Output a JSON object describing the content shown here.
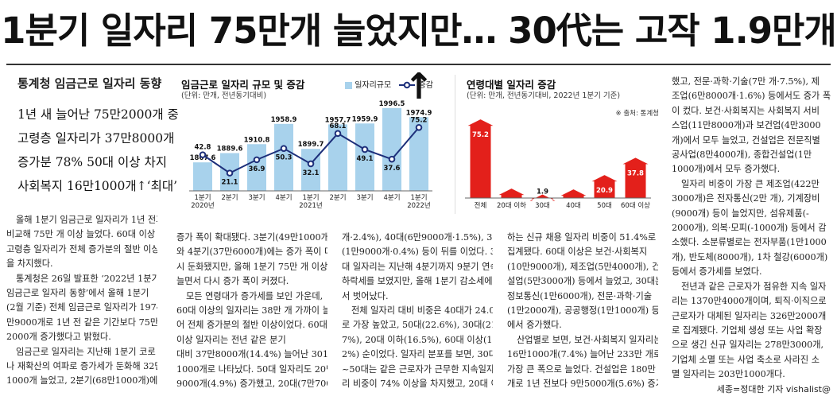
{
  "headline": "1분기 일자리 75만개 늘었지만… 30代는 고작 1.9만개↑",
  "sidebar": {
    "kicker": "통계청 임금근로 일자리 동향",
    "summary_lines": [
      "1년 새 늘어난 75만2000개 중",
      "고령층 일자리가 37만8000개",
      "증가분 78% 50대 이상 차지",
      "사회복지 16만1000개↑‘최대’"
    ]
  },
  "chart_data": [
    {
      "type": "bar",
      "title": "임금근로 일자리 규모 및 증감",
      "subtitle": "(단위: 만개, 전년동기대비)",
      "legend": [
        "일자리규모",
        "증감"
      ],
      "categories": [
        [
          "1분기",
          "2020년"
        ],
        [
          "2분기"
        ],
        [
          "3분기"
        ],
        [
          "4분기"
        ],
        [
          "1분기",
          "2021년"
        ],
        [
          "2분기"
        ],
        [
          "3분기"
        ],
        [
          "4분기"
        ],
        [
          "1분기",
          "2022년"
        ]
      ],
      "series": [
        {
          "name": "일자리규모",
          "type": "bar",
          "color": "#a8d2ec",
          "values": [
            1867.6,
            1889.6,
            1910.8,
            1958.9,
            1899.7,
            1957.7,
            1959.9,
            1996.5,
            1974.9
          ],
          "labels": [
            "1867.6",
            "1889.6",
            "1910.8",
            "1958.9",
            "1899.7",
            "1957.7",
            "1959.9",
            "1996.5",
            "1974.9"
          ]
        },
        {
          "name": "증감",
          "type": "line",
          "color": "#1d2f7a",
          "values": [
            42.8,
            21.1,
            36.9,
            50.3,
            32.1,
            68.1,
            49.1,
            37.6,
            75.2
          ],
          "labels": [
            "42.8",
            "21.1",
            "36.9",
            "50.3",
            "32.1",
            "68.1",
            "49.1",
            "37.6",
            "75.2"
          ]
        }
      ]
    },
    {
      "type": "bar",
      "title": "연령대별 일자리 증감",
      "subtitle": "(단위: 만개, 전년동기대비, 2022년 1분기 기준)",
      "source": "※ 출처: 통계청",
      "categories": [
        "전체",
        "20대 이하",
        "30대",
        "40대",
        "50대",
        "60대 이상"
      ],
      "values": [
        75.2,
        7.7,
        1.9,
        6.9,
        20.9,
        37.8
      ],
      "labels": [
        "75.2",
        "7.7",
        "1.9",
        "6.9",
        "20.9",
        "37.8"
      ],
      "color": "#e3201b"
    }
  ],
  "body": {
    "col1": [
      [
        "올해 1분기 임금근로 일자리가 1년 전과",
        "비교해 75만 개 이상 늘었다. 60대 이상",
        "고령층 일자리가 전체 증가분의 절반 이상",
        "을 차지했다."
      ],
      [
        "통계청은 26일 발표한 ‘2022년 1분기",
        "임금근로 일자리 동향’에서 올해 1분기",
        "(2월 기준) 전체 임금근로 일자리가 1974",
        "만9000개로 1년 전 같은 기간보다 75만",
        "2000개 증가했다고 밝혔다."
      ],
      [
        "임금근로 일자리는 지난해 1분기 코로",
        "나 재확산의 여파로 증가세가 둔화해 32만",
        "1000개 늘었고, 2분기(68만1000개)에는"
      ]
    ],
    "col2": [
      [
        "증가 폭이 확대됐다. 3분기(49만1000개)",
        "와 4분기(37만6000개)에는 증가 폭이 다",
        "시 둔화됐지만, 올해 1분기 75만 개 이상",
        "늘면서 다시 증가 폭이 커졌다."
      ],
      [
        "모든 연령대가 증가세를 보인 가운데,",
        "60대 이상의 일자리는 38만 개 가까이 늘",
        "어 전체 증가분의 절반 이상이었다. 60대",
        "이상 일자리는 전년 같은 분기",
        "대비 37만8000개(14.4%) 늘어난 301만",
        "1000개로 나타났다. 50대 일자리도 20만",
        "9000개(4.9%) 증가했고, 20대(7만7000"
      ]
    ],
    "col3": [
      [
        "개·2.4%), 40대(6만9000개·1.5%), 30대",
        "(1만9000개·0.4%) 등이 뒤를 이었다. 30",
        "대 일자리는 지난해 4분기까지 9분기 연속",
        "하락세를 보였지만, 올해 1분기 감소세에",
        "서 벗어났다."
      ],
      [
        "전체 일자리 대비 비중은 40대가 24.0%",
        "로 가장 높았고, 50대(22.6%), 30대(21.",
        "7%), 20대 이하(16.5%), 60대 이상(15.",
        "2%) 순이었다. 일자리 분포를 보면, 30대",
        "~50대는 같은 근로자가 근무한 지속일자",
        "리 비중이 74% 이상을 차지했고, 20대 이"
      ]
    ],
    "col4": [
      [
        "하는 신규 채용 일자리 비중이 51.4%로",
        "집계됐다. 60대 이상은 보건·사회복지",
        "(10만9000개), 제조업(5만4000개), 건",
        "설업(5만3000개) 등에서 늘었고, 30대는",
        "정보통신(1만6000개), 전문·과학·기술",
        "(1만2000개), 공공행정(1만1000개) 등",
        "에서 증가했다."
      ],
      [
        "산업별로 보면, 보건·사회복지 일자리는",
        "16만1000개(7.4%) 늘어난 233만 개로,",
        "가장 큰 폭으로 늘었다. 건설업은 180만",
        "개로 1년 전보다 9만5000개(5.6%) 증가"
      ]
    ],
    "col5": [
      [
        "했고, 전문·과학·기술(7만 개·7.5%), 제",
        "조업(6만8000개·1.6%) 등에서도 증가 폭",
        "이 컸다. 보건·사회복지는 사회복지 서비",
        "스업(11만8000개)과 보건업(4만3000",
        "개)에서 모두 늘었고, 건설업은 전문직별",
        "공사업(8만4000개), 종합건설업(1만",
        "1000개)에서 모두 증가했다."
      ],
      [
        "일자리 비중이 가장 큰 제조업(422만",
        "3000개)은 전자통신(2만 개), 기계장비",
        "(9000개) 등이 늘었지만, 섬유제품(-",
        "2000개), 의복·모피(-1000개) 등에서 감",
        "소했다. 소분류별로는 전자부품(1만1000",
        "개), 반도체(8000개), 1차 철강(6000개)",
        "등에서 증가세를 보였다."
      ],
      [
        "전년과 같은 근로자가 점유한 지속 일자",
        "리는 1370만4000개이며, 퇴직·이직으로",
        "근로자가 대체된 일자리는 326만2000개",
        "로 집계됐다. 기업체 생성 또는 사업 확장",
        "으로 생긴 신규 일자리는 278만3000개,",
        "기업체 소멸 또는 사업 축소로 사라진 소",
        "멸 일자리는 203만1000개다."
      ]
    ],
    "byline": "세종=정대한 기자 vishalist@"
  }
}
